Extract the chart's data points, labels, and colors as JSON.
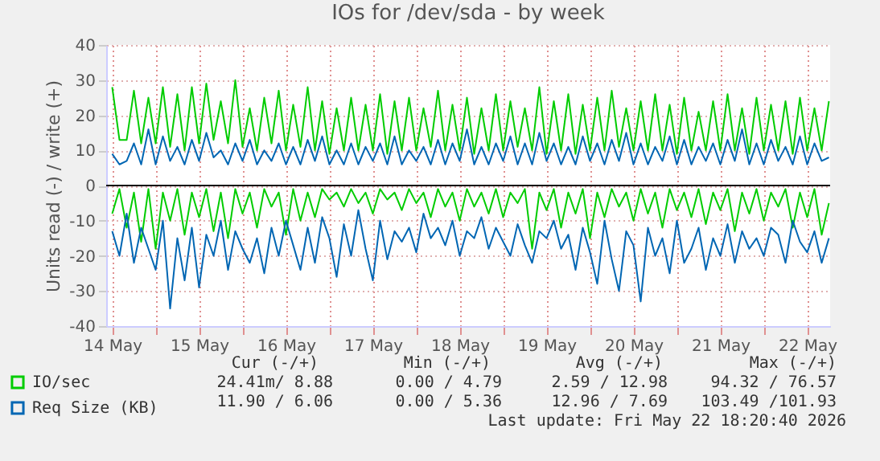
{
  "chart_data": {
    "type": "line",
    "title": "IOs for /dev/sda - by week",
    "ylabel": "Units read (-) / write (+)",
    "x": [
      "2026-05-14T12:00",
      "2026-05-14T14:00",
      "2026-05-14T16:00",
      "2026-05-14T18:00",
      "2026-05-14T20:00",
      "2026-05-14T22:00",
      "2026-05-15T00:00",
      "2026-05-15T02:00",
      "2026-05-15T04:00",
      "2026-05-15T06:00",
      "2026-05-15T08:00",
      "2026-05-15T10:00",
      "2026-05-15T12:00",
      "2026-05-15T14:00",
      "2026-05-15T16:00",
      "2026-05-15T18:00",
      "2026-05-15T20:00",
      "2026-05-15T22:00",
      "2026-05-16T00:00",
      "2026-05-16T02:00",
      "2026-05-16T04:00",
      "2026-05-16T06:00",
      "2026-05-16T08:00",
      "2026-05-16T10:00",
      "2026-05-16T12:00",
      "2026-05-16T14:00",
      "2026-05-16T16:00",
      "2026-05-16T18:00",
      "2026-05-16T20:00",
      "2026-05-16T22:00",
      "2026-05-17T00:00",
      "2026-05-17T02:00",
      "2026-05-17T04:00",
      "2026-05-17T06:00",
      "2026-05-17T08:00",
      "2026-05-17T10:00",
      "2026-05-17T12:00",
      "2026-05-17T14:00",
      "2026-05-17T16:00",
      "2026-05-17T18:00",
      "2026-05-17T20:00",
      "2026-05-17T22:00",
      "2026-05-18T00:00",
      "2026-05-18T02:00",
      "2026-05-18T04:00",
      "2026-05-18T06:00",
      "2026-05-18T08:00",
      "2026-05-18T10:00",
      "2026-05-18T12:00",
      "2026-05-18T14:00",
      "2026-05-18T16:00",
      "2026-05-18T18:00",
      "2026-05-18T20:00",
      "2026-05-18T22:00",
      "2026-05-19T00:00",
      "2026-05-19T02:00",
      "2026-05-19T04:00",
      "2026-05-19T06:00",
      "2026-05-19T08:00",
      "2026-05-19T10:00",
      "2026-05-19T12:00",
      "2026-05-19T14:00",
      "2026-05-19T16:00",
      "2026-05-19T18:00",
      "2026-05-19T20:00",
      "2026-05-19T22:00",
      "2026-05-20T00:00",
      "2026-05-20T02:00",
      "2026-05-20T04:00",
      "2026-05-20T06:00",
      "2026-05-20T08:00",
      "2026-05-20T10:00",
      "2026-05-20T12:00",
      "2026-05-20T14:00",
      "2026-05-20T16:00",
      "2026-05-20T18:00",
      "2026-05-20T20:00",
      "2026-05-20T22:00",
      "2026-05-21T00:00",
      "2026-05-21T02:00",
      "2026-05-21T04:00",
      "2026-05-21T06:00",
      "2026-05-21T08:00",
      "2026-05-21T10:00",
      "2026-05-21T12:00",
      "2026-05-21T14:00",
      "2026-05-21T16:00",
      "2026-05-21T18:00",
      "2026-05-21T20:00",
      "2026-05-21T22:00",
      "2026-05-22T00:00",
      "2026-05-22T02:00",
      "2026-05-22T04:00",
      "2026-05-22T06:00",
      "2026-05-22T08:00",
      "2026-05-22T10:00",
      "2026-05-22T12:00",
      "2026-05-22T14:00",
      "2026-05-22T16:00",
      "2026-05-22T18:00"
    ],
    "series": [
      {
        "color": "#00cc00",
        "values": [
          -8,
          -1,
          -12,
          -2,
          -16,
          -1,
          -18,
          -2,
          -10,
          -1,
          -14,
          -2,
          -9,
          -1,
          -13,
          -2,
          -15,
          -1,
          -8,
          -2,
          -12,
          -1,
          -6,
          -2,
          -14,
          -1,
          -10,
          -2,
          -9,
          -1,
          -4,
          -2,
          -6,
          -1,
          -5,
          -2,
          -8,
          -1,
          -4,
          -2,
          -7,
          -1,
          -5,
          -2,
          -9,
          -1,
          -6,
          -2,
          -10,
          -1,
          -6,
          -2,
          -8,
          -1,
          -9,
          -2,
          -5,
          -1,
          -18,
          -2,
          -7,
          -1,
          -12,
          -2,
          -8,
          -1,
          -15,
          -2,
          -9,
          -1,
          -6,
          -2,
          -10,
          -1,
          -8,
          -2,
          -12,
          -1,
          -7,
          -2,
          -9,
          -1,
          -11,
          -2,
          -7,
          -1,
          -13,
          -2,
          -8,
          -1,
          -10,
          -2,
          -6,
          -1,
          -12,
          -2,
          -9,
          -1,
          -14,
          -5
        ]
      },
      {
        "name": "IO/sec",
        "color": "#00cc00",
        "values": [
          28,
          13,
          13,
          27,
          12,
          25,
          12,
          28,
          11,
          26,
          10,
          28,
          12,
          29,
          13,
          24,
          12,
          30,
          11,
          22,
          10,
          25,
          12,
          27,
          10,
          23,
          11,
          28,
          10,
          24,
          9,
          22,
          10,
          25,
          10,
          23,
          10,
          26,
          9,
          24,
          10,
          25,
          10,
          22,
          11,
          27,
          10,
          23,
          10,
          25,
          9,
          22,
          10,
          26,
          10,
          24,
          11,
          22,
          10,
          28,
          9,
          24,
          10,
          26,
          9,
          23,
          10,
          25,
          10,
          27,
          11,
          22,
          10,
          24,
          10,
          26,
          10,
          23,
          9,
          25,
          10,
          21,
          10,
          24,
          10,
          26,
          10,
          22,
          9,
          25,
          10,
          23,
          10,
          24,
          9,
          25,
          10,
          22,
          10,
          24
        ]
      },
      {
        "color": "#0066b3",
        "values": [
          -13,
          -20,
          -8,
          -22,
          -12,
          -18,
          -24,
          -10,
          -35,
          -15,
          -27,
          -12,
          -29,
          -14,
          -20,
          -10,
          -24,
          -13,
          -18,
          -22,
          -15,
          -25,
          -12,
          -20,
          -10,
          -17,
          -24,
          -12,
          -22,
          -9,
          -15,
          -26,
          -11,
          -20,
          -7,
          -18,
          -27,
          -10,
          -21,
          -13,
          -16,
          -12,
          -19,
          -8,
          -15,
          -12,
          -17,
          -10,
          -20,
          -13,
          -15,
          -9,
          -18,
          -12,
          -16,
          -20,
          -11,
          -17,
          -22,
          -13,
          -15,
          -10,
          -18,
          -14,
          -24,
          -12,
          -19,
          -28,
          -10,
          -21,
          -30,
          -13,
          -17,
          -33,
          -12,
          -20,
          -15,
          -25,
          -10,
          -22,
          -18,
          -12,
          -24,
          -15,
          -20,
          -11,
          -22,
          -13,
          -18,
          -15,
          -20,
          -12,
          -14,
          -22,
          -10,
          -16,
          -19,
          -13,
          -22,
          -15
        ]
      },
      {
        "name": "Req Size (KB)",
        "color": "#0066b3",
        "values": [
          9,
          6,
          7,
          12,
          6,
          16,
          6,
          14,
          7,
          11,
          6,
          13,
          7,
          15,
          8,
          10,
          6,
          12,
          7,
          13,
          6,
          10,
          7,
          12,
          6,
          11,
          6,
          13,
          7,
          14,
          6,
          10,
          6,
          12,
          6,
          11,
          7,
          12,
          6,
          14,
          6,
          10,
          7,
          11,
          6,
          13,
          6,
          12,
          7,
          16,
          6,
          11,
          6,
          12,
          7,
          14,
          6,
          12,
          6,
          15,
          7,
          12,
          6,
          11,
          6,
          14,
          7,
          12,
          6,
          13,
          7,
          15,
          6,
          12,
          6,
          11,
          7,
          14,
          6,
          13,
          6,
          11,
          7,
          12,
          6,
          13,
          7,
          16,
          6,
          12,
          6,
          13,
          7,
          11,
          6,
          14,
          6,
          12,
          7,
          8
        ]
      }
    ],
    "xlim": [
      "2026-05-14T10:20",
      "2026-05-22T18:20"
    ],
    "xticks": [
      {
        "value": "2026-05-14T12:00",
        "label": "14 May"
      },
      {
        "value": "2026-05-15T00:00",
        "label": null
      },
      {
        "value": "2026-05-15T12:00",
        "label": "15 May"
      },
      {
        "value": "2026-05-16T00:00",
        "label": null
      },
      {
        "value": "2026-05-16T12:00",
        "label": "16 May"
      },
      {
        "value": "2026-05-17T00:00",
        "label": null
      },
      {
        "value": "2026-05-17T12:00",
        "label": "17 May"
      },
      {
        "value": "2026-05-18T00:00",
        "label": null
      },
      {
        "value": "2026-05-18T12:00",
        "label": "18 May"
      },
      {
        "value": "2026-05-19T00:00",
        "label": null
      },
      {
        "value": "2026-05-19T12:00",
        "label": "19 May"
      },
      {
        "value": "2026-05-20T00:00",
        "label": null
      },
      {
        "value": "2026-05-20T12:00",
        "label": "20 May"
      },
      {
        "value": "2026-05-21T00:00",
        "label": null
      },
      {
        "value": "2026-05-21T12:00",
        "label": "21 May"
      },
      {
        "value": "2026-05-22T00:00",
        "label": null
      },
      {
        "value": "2026-05-22T12:00",
        "label": "22 May"
      }
    ],
    "ylim": [
      -40,
      40
    ],
    "yticks": [
      -40,
      -30,
      -20,
      -10,
      0,
      10,
      20,
      30,
      40
    ],
    "grid": true,
    "legend": "bottom left",
    "ref_lines": [
      {
        "axis": "y",
        "value": 0,
        "color": "#000000"
      }
    ],
    "annotations": [
      "Cur (-/+)",
      "Min (-/+)",
      "Avg (-/+)",
      "Max (-/+)",
      "24.41m/  8.88",
      "0.00 /  4.79",
      "2.59 / 12.98",
      "94.32 / 76.57",
      "11.90 /  6.06",
      "0.00 /  5.36",
      "12.96 /  7.69",
      "103.49 /101.93",
      "Last update: Fri May 22 18:20:40 2026"
    ]
  }
}
